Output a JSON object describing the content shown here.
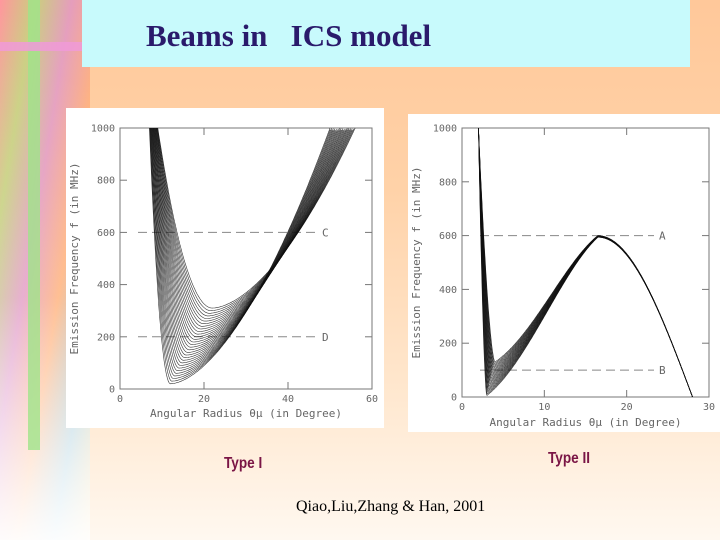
{
  "slide": {
    "title": "Beams in   ICS model",
    "caption_left": "Type  I",
    "caption_right": "Type II",
    "citation": "Qiao,Liu,Zhang & Han, 2001"
  },
  "chart_data": [
    {
      "type": "line",
      "xlabel": "Angular Radius  θμ  (in Degree)",
      "ylabel": "Emission Frequency  f  (in MHz)",
      "xlim": [
        0,
        60
      ],
      "ylim": [
        0,
        1000
      ],
      "x_ticks": [
        0,
        20,
        40,
        60
      ],
      "y_ticks": [
        0,
        200,
        400,
        600,
        800,
        1000
      ],
      "reference_lines": [
        {
          "label": "C",
          "y": 600
        },
        {
          "label": "D",
          "y": 200
        }
      ],
      "curve_family": {
        "description": "family of U-shaped curves",
        "count": 30,
        "x_start": 7,
        "min_x_range": [
          12,
          22
        ],
        "min_y_range": [
          20,
          310
        ],
        "outer_envelope_min": {
          "x": 18,
          "y": 310
        },
        "upper_bundle_end": {
          "x": 50,
          "y": 1000
        }
      }
    },
    {
      "type": "line",
      "xlabel": "Angular Radius  θμ  (in Degree)",
      "ylabel": "Emission Frequency  f  (in MHz)",
      "xlim": [
        0,
        30
      ],
      "ylim": [
        0,
        1000
      ],
      "x_ticks": [
        0,
        10,
        20,
        30
      ],
      "y_ticks": [
        0,
        200,
        400,
        600,
        800,
        1000
      ],
      "reference_lines": [
        {
          "label": "A",
          "y": 600
        },
        {
          "label": "B",
          "y": 100
        }
      ],
      "curve_family": {
        "description": "family of curves rising to a common peak",
        "count": 22,
        "x_start": 2,
        "min_x_range": [
          3,
          4
        ],
        "min_y_range": [
          5,
          130
        ],
        "peak": {
          "x": 16.5,
          "y": 600
        },
        "end": {
          "x": 28,
          "y": 0
        }
      }
    }
  ]
}
